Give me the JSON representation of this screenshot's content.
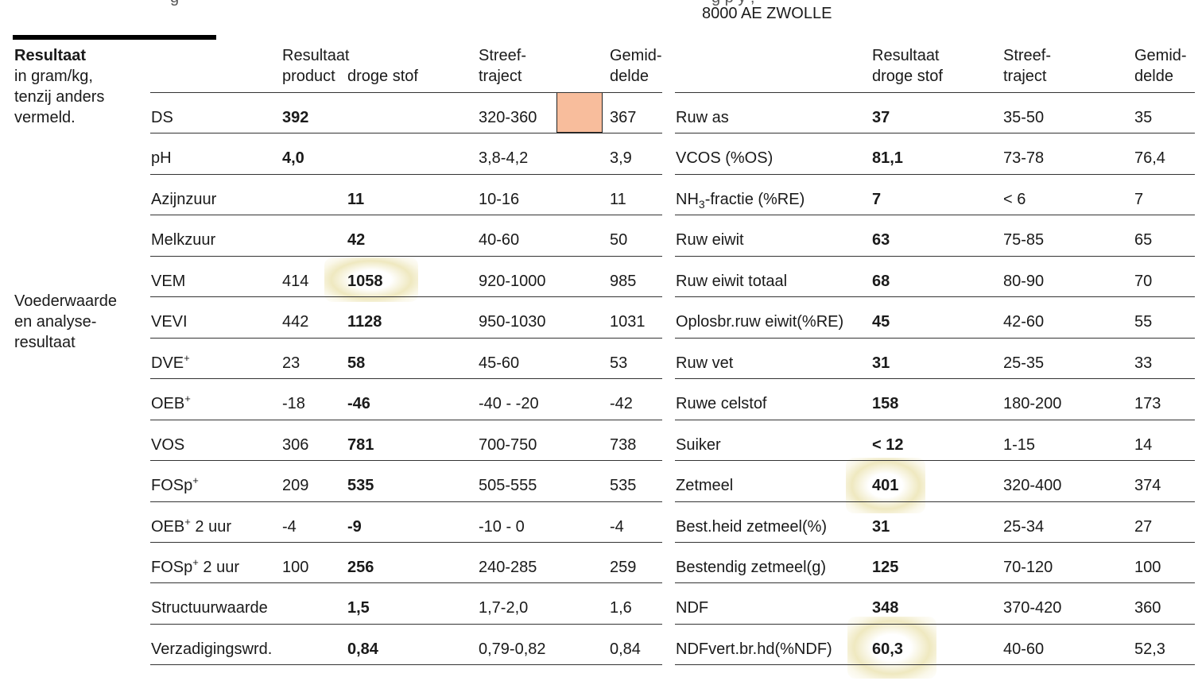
{
  "header": {
    "partial_text_left": "g",
    "partial_text_right": "g  p  y    ,",
    "address": "8000 AE  ZWOLLE"
  },
  "sidebar": {
    "title": "Resultaat",
    "note_lines": [
      "in gram/kg,",
      "tenzij anders",
      "vermeld."
    ],
    "section_lines": [
      "Voederwaarde",
      "en analyse-",
      "resultaat"
    ]
  },
  "left_table": {
    "headers": {
      "result_product": "Resultaat",
      "result_product_2": "product",
      "result_ds_2": "droge stof",
      "target_1": "Streef-",
      "target_2": "traject",
      "avg_1": "Gemid-",
      "avg_2": "delde"
    },
    "swatch_color": "#f8bd9c",
    "rows": [
      {
        "label": "DS",
        "product": "392",
        "product_bold": true,
        "ds": "",
        "target": "320-360",
        "avg": "367"
      },
      {
        "label": "pH",
        "product": "4,0",
        "product_bold": true,
        "ds": "",
        "target": "3,8-4,2",
        "avg": "3,9"
      },
      {
        "label": "Azijnzuur",
        "product": "",
        "ds": "11",
        "target": "10-16",
        "avg": "11"
      },
      {
        "label": "Melkzuur",
        "product": "",
        "ds": "42",
        "target": "40-60",
        "avg": "50"
      },
      {
        "label": "VEM",
        "product": "414",
        "ds": "1058",
        "target": "920-1000",
        "avg": "985"
      },
      {
        "label": "VEVI",
        "product": "442",
        "ds": "1128",
        "target": "950-1030",
        "avg": "1031"
      },
      {
        "label": "DVE",
        "sup": "+",
        "product": "23",
        "ds": "58",
        "target": "45-60",
        "avg": "53"
      },
      {
        "label": "OEB",
        "sup": "+",
        "product": "-18",
        "ds": "-46",
        "target": "-40 - -20",
        "avg": "-42"
      },
      {
        "label": "VOS",
        "product": "306",
        "ds": "781",
        "target": "700-750",
        "avg": "738"
      },
      {
        "label": "FOSp",
        "sup": "+",
        "product": "209",
        "ds": "535",
        "target": "505-555",
        "avg": "535"
      },
      {
        "label": "OEB",
        "sup": "+",
        "label_suffix": " 2 uur",
        "product": "-4",
        "ds": "-9",
        "target": "-10 - 0",
        "avg": "-4"
      },
      {
        "label": "FOSp",
        "sup": "+",
        "label_suffix": " 2 uur",
        "product": "100",
        "ds": "256",
        "target": "240-285",
        "avg": "259"
      },
      {
        "label": "Structuurwaarde",
        "product": "",
        "ds": "1,5",
        "target": "1,7-2,0",
        "avg": "1,6"
      },
      {
        "label": "Verzadigingswrd.",
        "product": "",
        "ds": "0,84",
        "target": "0,79-0,82",
        "avg": "0,84"
      }
    ]
  },
  "right_table": {
    "headers": {
      "result_1": "Resultaat",
      "result_2": "droge stof",
      "target_1": "Streef-",
      "target_2": "traject",
      "avg_1": "Gemid-",
      "avg_2": "delde"
    },
    "rows": [
      {
        "label": "Ruw as",
        "value": "37",
        "target": "35-50",
        "avg": "35"
      },
      {
        "label": "VCOS (%OS)",
        "value": "81,1",
        "target": "73-78",
        "avg": "76,4"
      },
      {
        "label": "NH",
        "sub": "3",
        "label_suffix": "-fractie (%RE)",
        "value": "7",
        "target": "< 6",
        "avg": "7"
      },
      {
        "label": "Ruw eiwit",
        "value": "63",
        "target": "75-85",
        "avg": "65"
      },
      {
        "label": "Ruw eiwit totaal",
        "value": "68",
        "target": "80-90",
        "avg": "70"
      },
      {
        "label": "Oplosbr.ruw eiwit(%RE)",
        "value": "45",
        "target": "42-60",
        "avg": "55"
      },
      {
        "label": "Ruw vet",
        "value": "31",
        "target": "25-35",
        "avg": "33"
      },
      {
        "label": "Ruwe celstof",
        "value": "158",
        "target": "180-200",
        "avg": "173"
      },
      {
        "label": "Suiker",
        "value": "< 12",
        "target": "1-15",
        "avg": "14"
      },
      {
        "label": "Zetmeel",
        "value": "401",
        "target": "320-400",
        "avg": "374"
      },
      {
        "label": "Best.heid zetmeel(%)",
        "value": "31",
        "target": "25-34",
        "avg": "27"
      },
      {
        "label": "Bestendig zetmeel(g)",
        "value": "125",
        "target": "70-120",
        "avg": "100"
      },
      {
        "label": "NDF",
        "value": "348",
        "target": "370-420",
        "avg": "360"
      },
      {
        "label": "NDFvert.br.hd(%NDF)",
        "value": "60,3",
        "target": "40-60",
        "avg": "52,3"
      }
    ]
  }
}
